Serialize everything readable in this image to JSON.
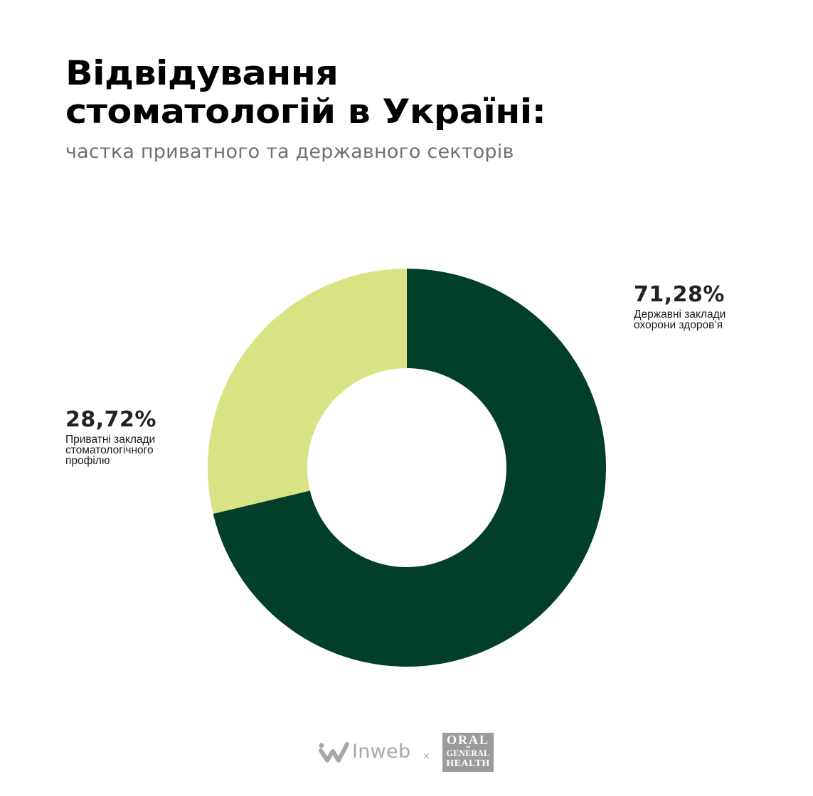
{
  "header": {
    "title_line1": "Відвідування",
    "title_line2": "стоматологій в Україні:",
    "subtitle": "частка приватного та державного секторів"
  },
  "labels": {
    "public": {
      "percent": "71,28%",
      "line1": "Державні заклади",
      "line2": "охорони здоров’я"
    },
    "private": {
      "percent": "28,72%",
      "line1": "Приватні заклади",
      "line2": "стоматологічного",
      "line3": "профілю"
    }
  },
  "footer": {
    "brand1": "Inweb",
    "separator": "×",
    "brand2_line1": "ORAL",
    "brand2_and": "and",
    "brand2_line2": "GENERAL",
    "brand2_line3": "HEALTH"
  },
  "colors": {
    "public": "#013f29",
    "private": "#d8e383",
    "title": "#000000",
    "subtitle": "#707070",
    "logo_gray": "#9b9b9b"
  },
  "chart_data": {
    "type": "pie",
    "variant": "donut",
    "title": "Відвідування стоматологій в Україні:",
    "subtitle": "частка приватного та державного секторів",
    "categories": [
      "Державні заклади охорони здоров’я",
      "Приватні заклади стоматологічного профілю"
    ],
    "values": [
      71.28,
      28.72
    ],
    "unit": "%",
    "colors": [
      "#013f29",
      "#d8e383"
    ],
    "start_angle": "12 o'clock, clockwise",
    "legend": "inline labels beside slices"
  }
}
